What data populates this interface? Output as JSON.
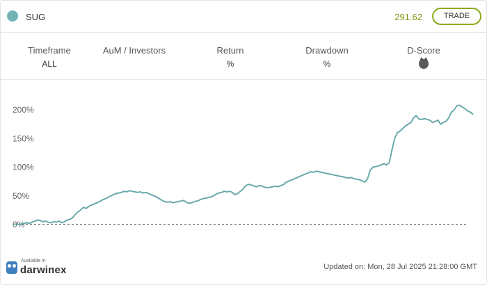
{
  "header": {
    "name": "SUG",
    "price": "291.62",
    "trade_label": "TRADE",
    "colors": {
      "dot": "#73b3b6",
      "price": "#7a9a16",
      "trade_border": "#8aab1c"
    }
  },
  "stats": [
    {
      "label": "Timeframe",
      "value": "ALL"
    },
    {
      "label": "AuM / Investors",
      "value": ""
    },
    {
      "label": "Return",
      "value": "%"
    },
    {
      "label": "Drawdown",
      "value": "%"
    },
    {
      "label": "D-Score",
      "value": "",
      "icon": "dscore-icon"
    }
  ],
  "chart_data": {
    "type": "line",
    "yticks": [
      "200%",
      "150%",
      "100%",
      "50%",
      "0%"
    ],
    "ylim": [
      -5,
      220
    ],
    "baseline": 0,
    "line_color": "#6aa9ab",
    "series": [
      {
        "values": [
          0,
          1,
          0,
          1,
          2,
          3,
          2,
          4,
          6,
          8,
          7,
          5,
          6,
          4,
          3,
          5,
          4,
          6,
          3,
          5,
          8,
          9,
          12,
          18,
          22,
          26,
          30,
          28,
          32,
          34,
          36,
          38,
          40,
          43,
          45,
          47,
          50,
          52,
          54,
          55,
          56,
          58,
          57,
          59,
          58,
          57,
          56,
          57,
          55,
          56,
          54,
          52,
          50,
          48,
          45,
          42,
          40,
          39,
          40,
          38,
          39,
          40,
          41,
          42,
          39,
          37,
          38,
          40,
          41,
          43,
          45,
          46,
          47,
          48,
          50,
          53,
          55,
          56,
          58,
          57,
          58,
          56,
          52,
          54,
          58,
          62,
          68,
          70,
          69,
          67,
          66,
          68,
          67,
          65,
          64,
          65,
          66,
          67,
          66,
          68,
          70,
          74,
          76,
          78,
          80,
          82,
          84,
          86,
          88,
          90,
          92,
          91,
          93,
          92,
          91,
          90,
          89,
          88,
          87,
          86,
          85,
          84,
          83,
          82,
          81,
          82,
          80,
          79,
          78,
          76,
          74,
          80,
          95,
          100,
          101,
          102,
          104,
          106,
          104,
          108,
          130,
          150,
          160,
          163,
          167,
          172,
          175,
          178,
          186,
          190,
          184,
          183,
          185,
          183,
          182,
          178,
          180,
          182,
          175,
          178,
          180,
          186,
          196,
          200,
          207,
          208,
          205,
          202,
          198,
          196,
          192
        ]
      }
    ],
    "grid": false
  },
  "footer": {
    "available_in": "Available in",
    "brand": "darwinex",
    "updated": "Updated on: Mon, 28 Jul 2025 21:28:00 GMT"
  }
}
